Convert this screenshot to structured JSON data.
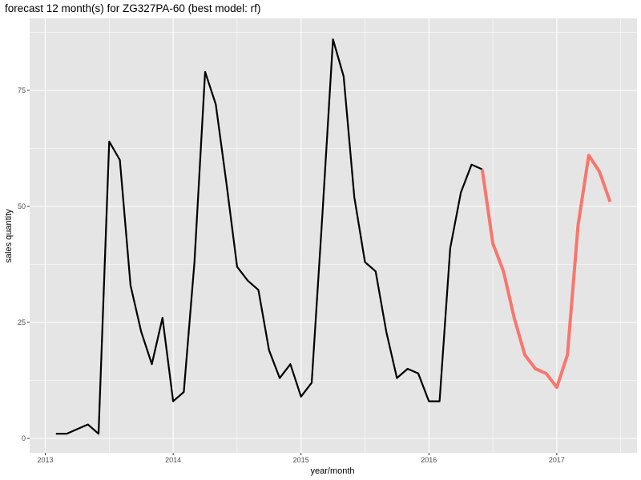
{
  "chart_data": {
    "type": "line",
    "title": "forecast 12 month(s) for ZG327PA-60 (best model: rf)",
    "xlabel": "year/month",
    "ylabel": "sales quantity",
    "x_ticks": [
      "2013",
      "2014",
      "2015",
      "2016",
      "2017"
    ],
    "y_ticks": [
      0,
      25,
      50,
      75
    ],
    "ylim": [
      -3,
      90
    ],
    "grid": true,
    "colors": {
      "history": "#000000",
      "forecast": "#f8766d",
      "panel": "#e5e5e5",
      "grid": "#ffffff"
    },
    "series": [
      {
        "x": [
          "2013-02",
          "2013-03",
          "2013-04",
          "2013-05",
          "2013-06",
          "2013-07",
          "2013-08",
          "2013-09",
          "2013-10",
          "2013-11",
          "2013-12",
          "2014-01",
          "2014-02",
          "2014-03",
          "2014-04",
          "2014-05",
          "2014-06",
          "2014-07",
          "2014-08",
          "2014-09",
          "2014-10",
          "2014-11",
          "2014-12",
          "2015-01",
          "2015-02",
          "2015-03",
          "2015-04",
          "2015-05",
          "2015-06",
          "2015-07",
          "2015-08",
          "2015-09",
          "2015-10",
          "2015-11",
          "2015-12",
          "2016-01",
          "2016-02",
          "2016-03",
          "2016-04",
          "2016-05",
          "2016-06"
        ],
        "values": [
          1,
          1,
          2,
          3,
          1,
          64,
          60,
          33,
          23,
          16,
          26,
          8,
          10,
          38,
          79,
          72,
          55,
          37,
          34,
          32,
          19,
          13,
          16,
          9,
          12,
          48,
          86,
          78,
          52,
          38,
          36,
          23,
          13,
          15,
          14,
          8,
          8,
          41,
          53,
          59,
          58
        ]
      },
      {
        "x": [
          "2016-06",
          "2016-07",
          "2016-08",
          "2016-09",
          "2016-10",
          "2016-11",
          "2016-12",
          "2017-01",
          "2017-02",
          "2017-03",
          "2017-04",
          "2017-05",
          "2017-06"
        ],
        "values": [
          58,
          42,
          36,
          26,
          18,
          15,
          14,
          11,
          18,
          46,
          61,
          57.5,
          51
        ]
      }
    ]
  }
}
